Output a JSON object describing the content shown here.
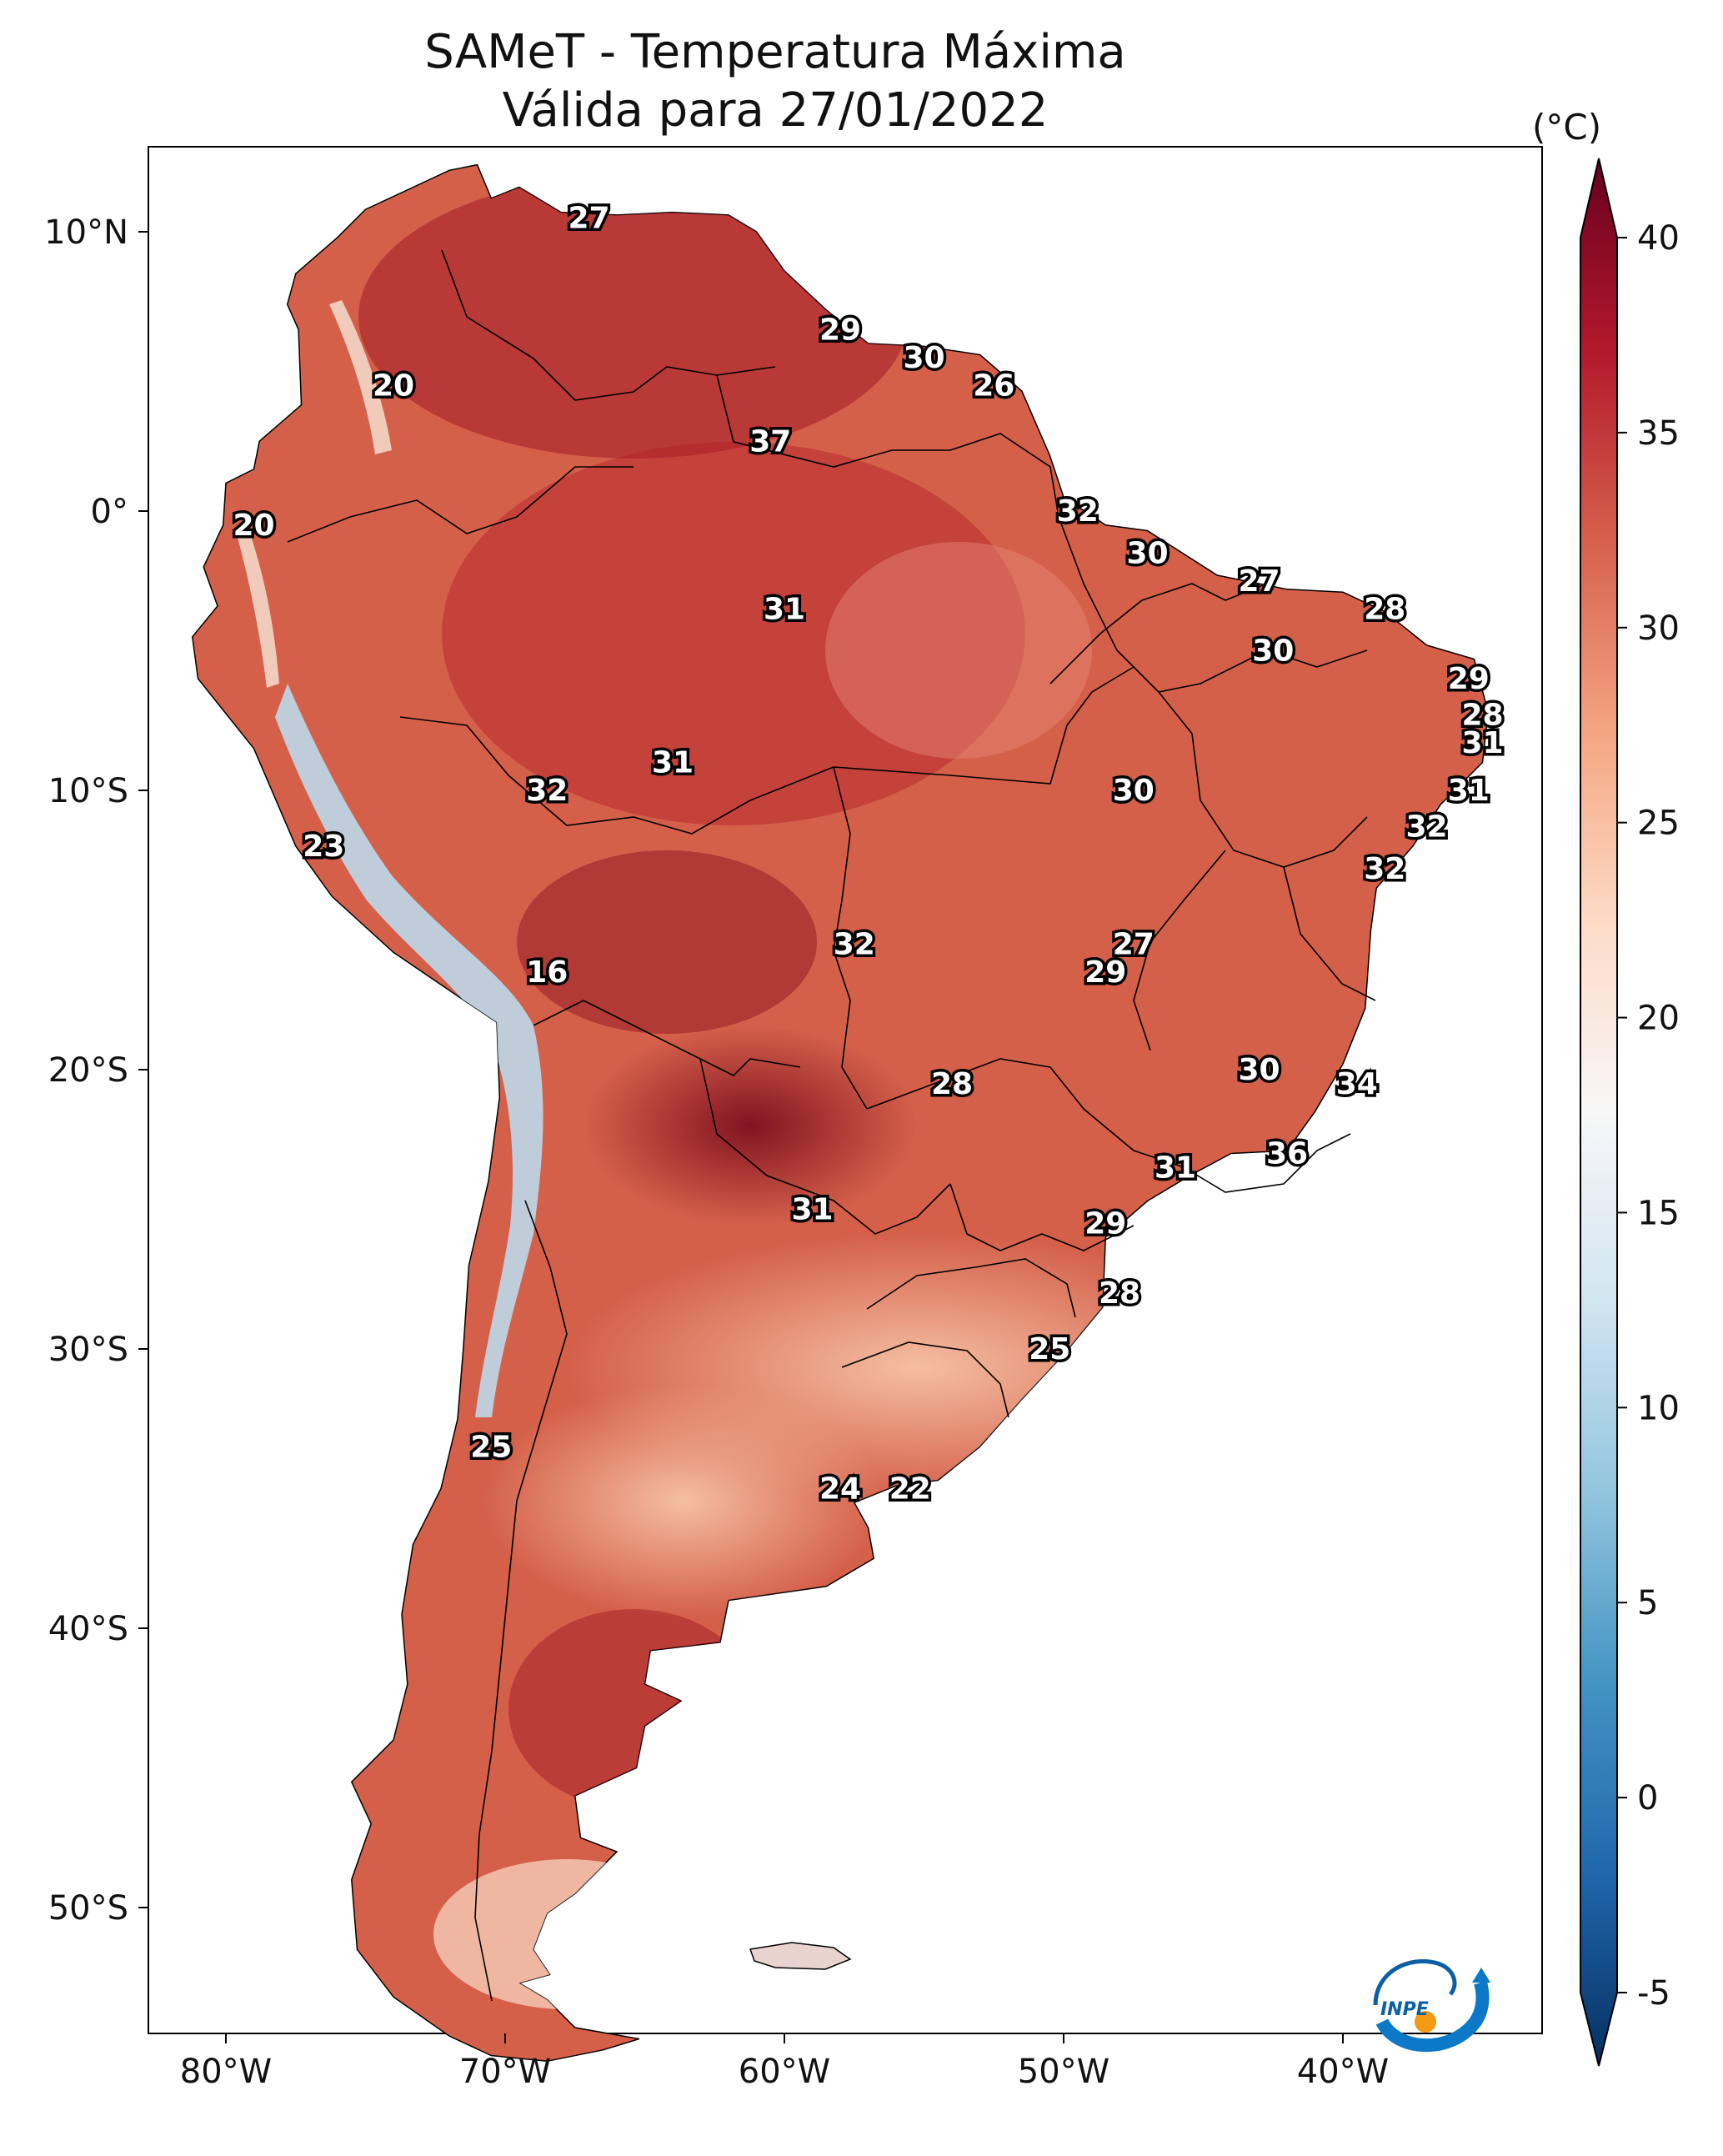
{
  "title": {
    "line1": "SAMeT - Temperatura Máxima",
    "line2": "Válida para 27/01/2022"
  },
  "colorbar": {
    "unit": "(°C)",
    "ticks": [
      40,
      35,
      30,
      25,
      20,
      15,
      10,
      5,
      0,
      -5
    ],
    "range": [
      -5,
      40
    ],
    "extend": "both",
    "colors": [
      "#053061",
      "#2166ac",
      "#4393c3",
      "#92c5de",
      "#d1e5f0",
      "#f7f7f7",
      "#fddbc7",
      "#f4a582",
      "#d6604d",
      "#b2182b",
      "#67001f"
    ]
  },
  "axes": {
    "lon_ticks": [
      "80°W",
      "70°W",
      "60°W",
      "50°W",
      "40°W"
    ],
    "lat_ticks": [
      "10°N",
      "0°",
      "10°S",
      "20°S",
      "30°S",
      "40°S",
      "50°S"
    ]
  },
  "map": {
    "land_color": "#d4604a",
    "hot_color": "#a11a26",
    "mild_color": "#f1a88b",
    "cold_color": "#bcd8ea",
    "border_color": "#000000"
  },
  "temperature_labels": [
    {
      "value": "27",
      "lon": -67,
      "lat": 10.5
    },
    {
      "value": "20",
      "lon": -74,
      "lat": 4.5
    },
    {
      "value": "29",
      "lon": -58,
      "lat": 6.5
    },
    {
      "value": "30",
      "lon": -55,
      "lat": 5.5
    },
    {
      "value": "26",
      "lon": -52.5,
      "lat": 4.5
    },
    {
      "value": "37",
      "lon": -60.5,
      "lat": 2.5
    },
    {
      "value": "20",
      "lon": -79,
      "lat": -0.5
    },
    {
      "value": "32",
      "lon": -49.5,
      "lat": 0
    },
    {
      "value": "30",
      "lon": -47,
      "lat": -1.5
    },
    {
      "value": "31",
      "lon": -60,
      "lat": -3.5
    },
    {
      "value": "27",
      "lon": -43,
      "lat": -2.5
    },
    {
      "value": "28",
      "lon": -38.5,
      "lat": -3.5
    },
    {
      "value": "30",
      "lon": -42.5,
      "lat": -5
    },
    {
      "value": "29",
      "lon": -35.5,
      "lat": -6
    },
    {
      "value": "28",
      "lon": -35,
      "lat": -7.3
    },
    {
      "value": "31",
      "lon": -35,
      "lat": -8.3
    },
    {
      "value": "31",
      "lon": -64,
      "lat": -9
    },
    {
      "value": "32",
      "lon": -68.5,
      "lat": -10
    },
    {
      "value": "30",
      "lon": -47.5,
      "lat": -10
    },
    {
      "value": "31",
      "lon": -35.5,
      "lat": -10
    },
    {
      "value": "32",
      "lon": -37,
      "lat": -11.3
    },
    {
      "value": "23",
      "lon": -76.5,
      "lat": -12
    },
    {
      "value": "32",
      "lon": -38.5,
      "lat": -12.8
    },
    {
      "value": "16",
      "lon": -68.5,
      "lat": -16.5
    },
    {
      "value": "32",
      "lon": -57.5,
      "lat": -15.5
    },
    {
      "value": "27",
      "lon": -47.5,
      "lat": -15.5
    },
    {
      "value": "29",
      "lon": -48.5,
      "lat": -16.5
    },
    {
      "value": "30",
      "lon": -43,
      "lat": -20
    },
    {
      "value": "28",
      "lon": -54,
      "lat": -20.5
    },
    {
      "value": "34",
      "lon": -39.5,
      "lat": -20.5
    },
    {
      "value": "36",
      "lon": -42,
      "lat": -23
    },
    {
      "value": "31",
      "lon": -46,
      "lat": -23.5
    },
    {
      "value": "31",
      "lon": -59,
      "lat": -25
    },
    {
      "value": "29",
      "lon": -48.5,
      "lat": -25.5
    },
    {
      "value": "28",
      "lon": -48,
      "lat": -28
    },
    {
      "value": "25",
      "lon": -50.5,
      "lat": -30
    },
    {
      "value": "25",
      "lon": -70.5,
      "lat": -33.5
    },
    {
      "value": "24",
      "lon": -58,
      "lat": -35
    },
    {
      "value": "22",
      "lon": -55.5,
      "lat": -35
    }
  ],
  "logo": {
    "text": "INPE"
  }
}
